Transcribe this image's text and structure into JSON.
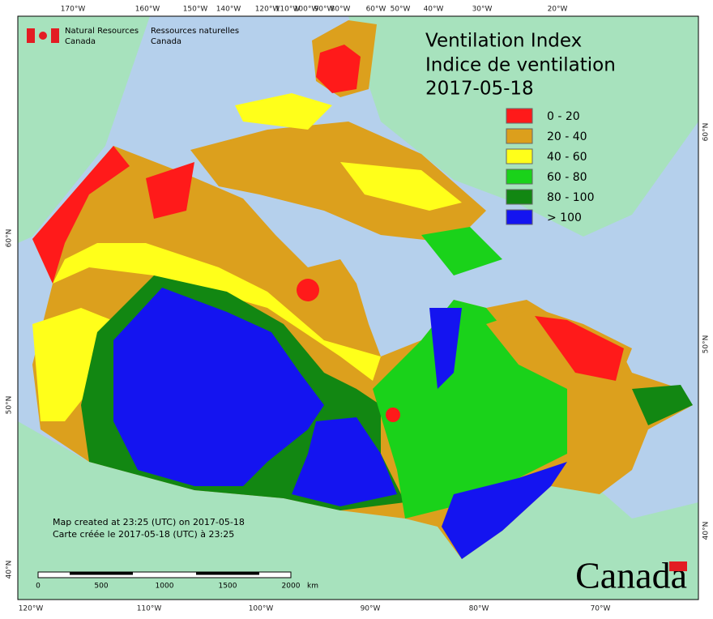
{
  "header": {
    "agency_en": "Natural Resources",
    "agency_en2": "Canada",
    "agency_fr": "Ressources naturelles",
    "agency_fr2": "Canada"
  },
  "title": {
    "line1": "Ventilation Index",
    "line2": "Indice de ventilation",
    "date": "2017-05-18"
  },
  "legend": [
    {
      "label": "0 - 20",
      "color": "#ff1a1a"
    },
    {
      "label": "20 - 40",
      "color": "#dc9f1c"
    },
    {
      "label": "40 - 60",
      "color": "#ffff1a"
    },
    {
      "label": "60 - 80",
      "color": "#1ad21a"
    },
    {
      "label": "80 - 100",
      "color": "#128712"
    },
    {
      "label": "> 100",
      "color": "#1414f0"
    }
  ],
  "graticule": {
    "top": [
      "170°W",
      "160°W",
      "150°W",
      "140°W",
      "120°W",
      "110°W",
      "100°W",
      "90°W",
      "80°W",
      "60°W",
      "50°W",
      "40°W",
      "30°W",
      "20°W"
    ],
    "bottom": [
      "120°W",
      "110°W",
      "100°W",
      "90°W",
      "80°W",
      "70°W"
    ],
    "left": [
      "60°N",
      "50°N",
      "40°N"
    ],
    "right": [
      "60°N",
      "50°N",
      "40°N"
    ]
  },
  "footer": {
    "created_en": "Map created at 23:25 (UTC) on 2017-05-18",
    "created_fr": "Carte créée le 2017-05-18 (UTC) à 23:25"
  },
  "scale_bar": {
    "labels": [
      "0",
      "500",
      "1000",
      "1500",
      "2000"
    ],
    "unit": "km"
  },
  "wordmark": "Canada"
}
